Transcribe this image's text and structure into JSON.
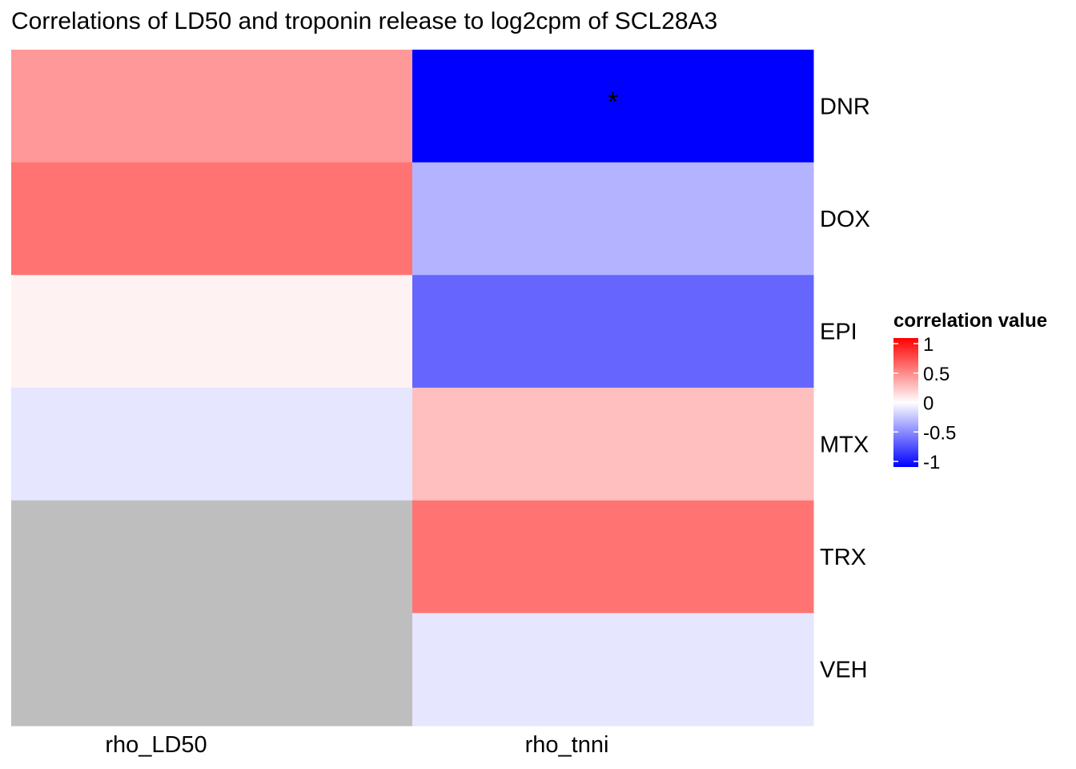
{
  "chart_data": {
    "type": "heatmap",
    "title": "Correlations of LD50 and troponin release to log2cpm of SCL28A3",
    "x_categories": [
      "rho_LD50",
      "rho_tnni"
    ],
    "y_categories": [
      "DNR",
      "DOX",
      "EPI",
      "MTX",
      "TRX",
      "VEH"
    ],
    "values": [
      [
        0.4,
        -1.0
      ],
      [
        0.55,
        -0.3
      ],
      [
        0.05,
        -0.6
      ],
      [
        -0.1,
        0.25
      ],
      [
        null,
        0.55
      ],
      [
        null,
        -0.1
      ]
    ],
    "annotations": [
      {
        "row": "DNR",
        "col": "rho_tnni",
        "text": "*"
      }
    ],
    "na_color": "#bebebe",
    "colors": {
      "low": "#0000ff",
      "mid": "#ffffff",
      "high": "#ff0000"
    },
    "legend": {
      "title": "correlation value",
      "breaks": [
        1,
        0.5,
        0,
        -0.5,
        -1
      ],
      "labels": [
        "1",
        "0.5",
        "0",
        "-0.5",
        "-1"
      ],
      "limits": [
        -1,
        1
      ],
      "position": "right"
    }
  }
}
